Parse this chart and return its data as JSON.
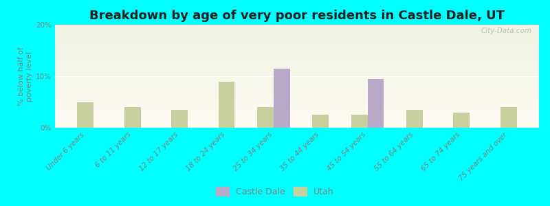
{
  "categories": [
    "Under 6 years",
    "6 to 11 years",
    "12 to 17 years",
    "18 to 24 years",
    "25 to 34 years",
    "35 to 44 years",
    "45 to 54 years",
    "55 to 64 years",
    "65 to 74 years",
    "75 years and over"
  ],
  "castle_dale": [
    0,
    0,
    0,
    0,
    11.5,
    0,
    9.5,
    0,
    0,
    0
  ],
  "utah": [
    5.0,
    4.0,
    3.5,
    9.0,
    4.0,
    2.5,
    2.5,
    3.5,
    3.0,
    4.0
  ],
  "castle_dale_color": "#b8a9c9",
  "utah_color": "#c8cf9e",
  "title": "Breakdown by age of very poor residents in Castle Dale, UT",
  "ylabel": "% below half of\npoverty level",
  "ylim": [
    0,
    20
  ],
  "yticks": [
    0,
    10,
    20
  ],
  "ytick_labels": [
    "0%",
    "10%",
    "20%"
  ],
  "outer_bg": "#00ffff",
  "bar_width": 0.35,
  "title_fontsize": 13,
  "axis_fontsize": 8,
  "tick_fontsize": 7.5,
  "legend_fontsize": 9,
  "watermark": "City-Data.com"
}
